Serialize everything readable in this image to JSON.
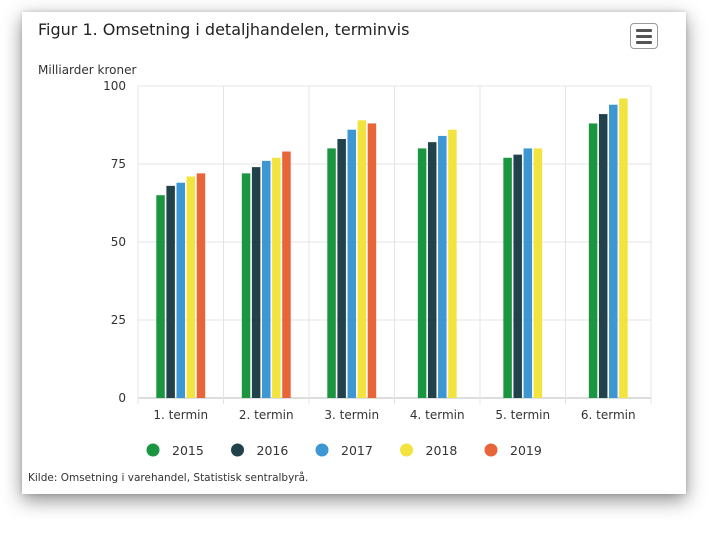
{
  "header": {
    "title": "Figur 1. Omsetning i detaljhandelen, terminvis",
    "menu_icon": "hamburger-menu-icon"
  },
  "footer": {
    "source": "Kilde: Omsetning i varehandel, Statistisk sentralbyrå."
  },
  "chart_data": {
    "type": "bar",
    "title": "Figur 1. Omsetning i detaljhandelen, terminvis",
    "ylabel": "Milliarder kroner",
    "xlabel": "",
    "ylim": [
      0,
      100
    ],
    "yticks": [
      "0",
      "25",
      "50",
      "75",
      "100"
    ],
    "grid": true,
    "legend_position": "bottom",
    "categories": [
      "1. termin",
      "2. termin",
      "3. termin",
      "4. termin",
      "5. termin",
      "6. termin"
    ],
    "series": [
      {
        "name": "2015",
        "color": "#1a9641",
        "values": [
          65,
          72,
          80,
          80,
          77,
          88
        ]
      },
      {
        "name": "2016",
        "color": "#22424b",
        "values": [
          68,
          74,
          83,
          82,
          78,
          91
        ]
      },
      {
        "name": "2017",
        "color": "#3d97d3",
        "values": [
          69,
          76,
          86,
          84,
          80,
          94
        ]
      },
      {
        "name": "2018",
        "color": "#f2e33f",
        "values": [
          71,
          77,
          89,
          86,
          80,
          96
        ]
      },
      {
        "name": "2019",
        "color": "#e8653a",
        "values": [
          72,
          79,
          88,
          null,
          null,
          null
        ]
      }
    ]
  }
}
